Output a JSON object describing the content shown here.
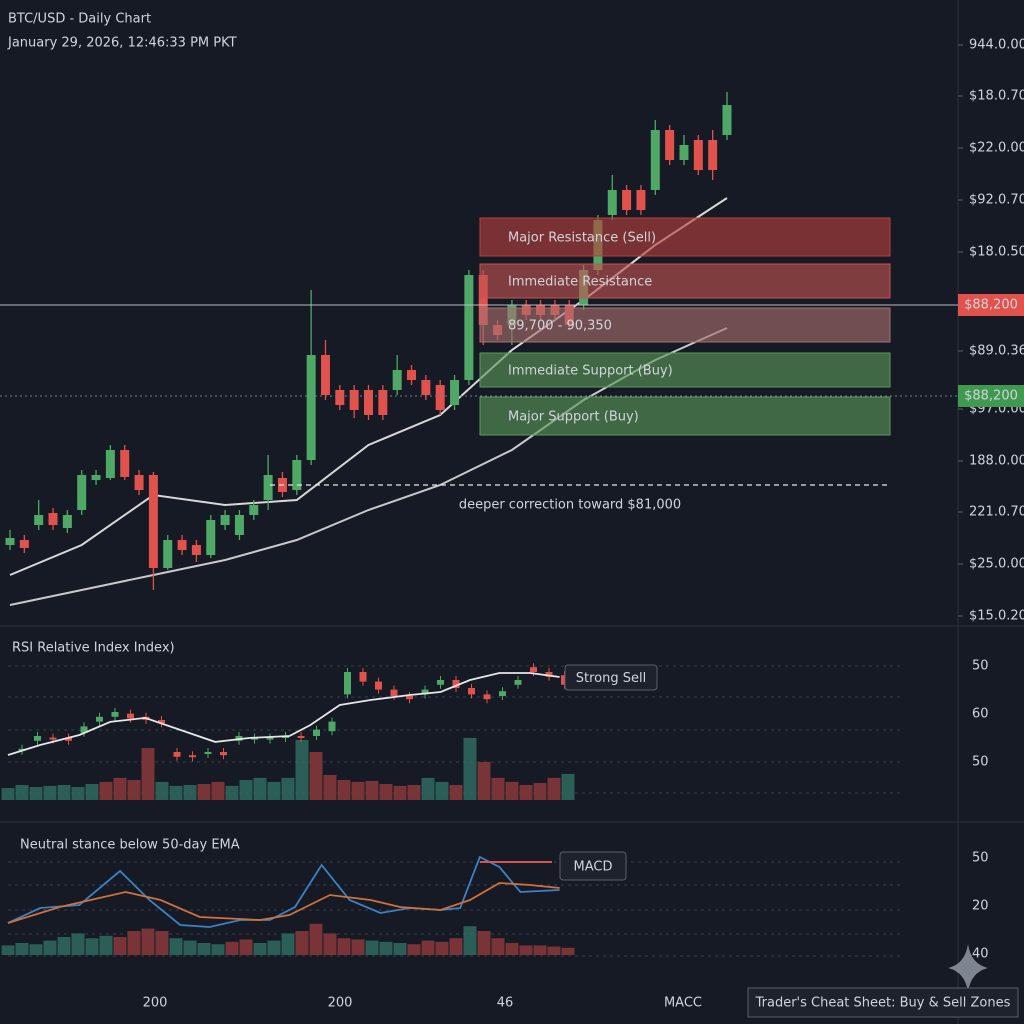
{
  "chart_data": [
    {
      "type": "candlestick",
      "title": "BTC/USD - Daily Chart",
      "subtitle": "January 29, 2026, 12:46:33 PM PKT",
      "up_color": "#4fa866",
      "down_color": "#e0524b",
      "ylim": [
        75400,
        100400
      ],
      "yticks": [
        {
          "value": 98600,
          "label": "944.0.00"
        },
        {
          "value": 96560,
          "label": "$18.0.70"
        },
        {
          "value": 94480,
          "label": "$22.0.00"
        },
        {
          "value": 92400,
          "label": "$92.0.70"
        },
        {
          "value": 90320,
          "label": "$18.0.50"
        },
        {
          "value": 86360,
          "label": "$89.0.36"
        },
        {
          "value": 84040,
          "label": "$97.0.00"
        },
        {
          "value": 81960,
          "label": "188.0.00"
        },
        {
          "value": 79920,
          "label": "221.0.70"
        },
        {
          "value": 77840,
          "label": "$25.0.00"
        },
        {
          "value": 75760,
          "label": "$15.0.20"
        }
      ],
      "open": [
        78600,
        78800,
        79400,
        79880,
        79280,
        80000,
        81200,
        81280,
        82400,
        81400,
        81400,
        77680,
        78800,
        78600,
        78200,
        79400,
        79000,
        79800,
        80400,
        81280,
        80800,
        82000,
        86200,
        84800,
        84800,
        84800,
        84800,
        84800,
        85600,
        85200,
        85000,
        84200,
        85200,
        89400,
        87400,
        87400,
        88200,
        88200,
        88200,
        88200,
        88200,
        89600,
        91800,
        92800,
        92800,
        92800,
        95200,
        94000,
        94800,
        94800,
        95000
      ],
      "high": [
        79200,
        79000,
        80400,
        80080,
        80000,
        81600,
        81600,
        82600,
        82600,
        81600,
        81520,
        79000,
        79000,
        78800,
        79800,
        80000,
        80000,
        80400,
        82200,
        81520,
        82200,
        88800,
        86800,
        85000,
        85000,
        85000,
        85000,
        86200,
        85800,
        85400,
        85200,
        85400,
        89600,
        89600,
        87600,
        88400,
        88400,
        88400,
        88400,
        88400,
        89800,
        91800,
        93400,
        93000,
        93000,
        95600,
        95400,
        95000,
        95000,
        95200,
        96720
      ],
      "low": [
        78400,
        78280,
        79200,
        79200,
        79080,
        79800,
        81000,
        81200,
        81200,
        80600,
        76800,
        77600,
        78200,
        77920,
        78080,
        79200,
        78800,
        79600,
        80000,
        80520,
        80600,
        81800,
        84400,
        84000,
        83680,
        83600,
        83600,
        84600,
        85000,
        84400,
        83800,
        84000,
        85000,
        86600,
        86800,
        86600,
        87600,
        87600,
        87600,
        87200,
        88000,
        89400,
        91600,
        91800,
        91800,
        92600,
        93800,
        93800,
        93400,
        93200,
        94800
      ],
      "close": [
        78880,
        78480,
        79800,
        79400,
        79800,
        81400,
        81400,
        82400,
        81320,
        80800,
        77680,
        78800,
        78400,
        78200,
        79600,
        79800,
        79800,
        80200,
        81400,
        80720,
        82000,
        86200,
        84600,
        84200,
        84000,
        83800,
        83800,
        85600,
        85200,
        84600,
        84000,
        85200,
        89400,
        87400,
        87000,
        88200,
        87800,
        87800,
        87800,
        87400,
        89600,
        91600,
        92800,
        92000,
        92000,
        95200,
        94000,
        94600,
        93600,
        93600,
        96200
      ],
      "moving_averages": [
        {
          "color": "#d8d8d8",
          "x": [
            0,
            5,
            10,
            15,
            20,
            25,
            30,
            35,
            40,
            45,
            50
          ],
          "values": [
            77400,
            78600,
            80600,
            80200,
            80400,
            82600,
            83800,
            86400,
            88400,
            90600,
            92480
          ]
        },
        {
          "color": "#c9c9c9",
          "x": [
            0,
            5,
            10,
            15,
            20,
            25,
            30,
            35,
            40,
            45,
            50
          ],
          "values": [
            76200,
            76800,
            77400,
            78000,
            78800,
            80000,
            81000,
            82400,
            84400,
            86000,
            87280
          ]
        }
      ],
      "price_line": {
        "value": 88200,
        "label": "$88,200",
        "color": "#e0524b"
      },
      "support_marker": {
        "label": "$88,200",
        "color": "#3f9a4f"
      },
      "zones": [
        {
          "label": "Major Resistance (Sell)",
          "color": "#b8403c"
        },
        {
          "label": "Immediate Resistance",
          "color": "#c25450"
        },
        {
          "label": "89,700 - 90,350",
          "color": "#a8706e"
        },
        {
          "label": "Immediate Support (Buy)",
          "color": "#5a9a58"
        },
        {
          "label": "Major Support (Buy)",
          "color": "#5a9a58"
        }
      ],
      "target": {
        "value": 81000,
        "label": "deeper correction toward $81,000"
      }
    },
    {
      "type": "rsi",
      "title": "RSI Relative Index Index)",
      "side_labels": [
        "50",
        "60",
        "50"
      ],
      "badge": "Strong Sell",
      "ylim": [
        0,
        100
      ],
      "xlim": [
        0,
        40
      ],
      "up_color": "#2f6b5f",
      "down_color": "#8a3a3a",
      "candle_up_color": "#4fa866",
      "candle_down_color": "#e0524b",
      "line_color": "#e6e6e6",
      "open": [
        31,
        37,
        39,
        39,
        42,
        49,
        52,
        54,
        52,
        50,
        30,
        28,
        29,
        30,
        37,
        38,
        38,
        39,
        40,
        40,
        43,
        66,
        80,
        74,
        69,
        65,
        66,
        72,
        75,
        70,
        66,
        65,
        72,
        83,
        80,
        78
      ],
      "close": [
        32,
        40,
        38,
        37,
        46,
        52,
        55,
        51,
        50,
        48,
        27,
        27,
        30,
        28,
        40,
        39,
        39,
        40,
        39,
        44,
        49,
        80,
        74,
        69,
        65,
        63,
        69,
        75,
        70,
        66,
        63,
        68,
        75,
        80,
        77,
        72
      ],
      "line_x": [
        0,
        2.3,
        5.1,
        7.3,
        9.8,
        12.3,
        14.8,
        17.3,
        20.1,
        21.6,
        23.7,
        25.9,
        28.7,
        30.9,
        33,
        35.1,
        37.3,
        39.4
      ],
      "line_values": [
        28.1,
        34.4,
        40.6,
        48.8,
        51.3,
        43.8,
        36.3,
        38.8,
        40,
        46.9,
        59.4,
        62.5,
        65.6,
        67.5,
        75,
        79.4,
        79.4,
        76.9
      ],
      "histogram": [
        7.5,
        9.4,
        8.1,
        8.8,
        9.4,
        8.1,
        10,
        11.3,
        13.8,
        12.5,
        32.5,
        11.3,
        8.8,
        9.4,
        10,
        11.3,
        8.8,
        12.5,
        13.8,
        11.3,
        13.8,
        37.5,
        30,
        15.6,
        12.5,
        11.3,
        11.9,
        10,
        8.8,
        9.4,
        13.8,
        11.3,
        9.4,
        38.8,
        23.8,
        13.8,
        11.3,
        9.4,
        10.6,
        13.8,
        16.3
      ],
      "up": [
        true,
        true,
        true,
        true,
        true,
        true,
        true,
        false,
        false,
        false,
        false,
        true,
        true,
        true,
        false,
        false,
        true,
        true,
        true,
        true,
        true,
        true,
        false,
        false,
        false,
        false,
        false,
        false,
        false,
        false,
        true,
        true,
        false,
        true,
        false,
        false,
        false,
        false,
        false,
        false,
        true
      ]
    },
    {
      "type": "macd",
      "title": "Neutral stance below 50-day EMA",
      "side_labels": [
        "50",
        "20",
        "40"
      ],
      "badge": "MACD",
      "ylim": [
        0,
        100
      ],
      "xlim": [
        0,
        40
      ],
      "up_color": "#2f6b5f",
      "down_color": "#8a3a3a",
      "macd_color": "#3b82c4",
      "signal_color": "#d0703a",
      "macd_x": [
        0,
        2.3,
        5.1,
        8,
        10.1,
        12.3,
        14.4,
        16.6,
        18.7,
        20.5,
        22.4,
        24.4,
        26.6,
        28.7,
        30.9,
        32.3,
        33.7,
        35.1,
        36.6,
        39.4
      ],
      "macd_values": [
        26.7,
        39.2,
        41.7,
        70,
        45.8,
        25,
        23.3,
        29.2,
        29.2,
        40,
        75,
        45.8,
        35,
        39.2,
        37.5,
        39.2,
        81.7,
        73.3,
        52.5,
        54.2
      ],
      "signal_x": [
        0,
        3.7,
        8.4,
        10.9,
        13.7,
        18,
        20.1,
        23,
        25.9,
        28,
        30.9,
        33,
        35.1,
        37.3,
        39.4
      ],
      "signal_values": [
        26.7,
        40,
        52.5,
        45.8,
        31.7,
        29.2,
        33.3,
        50,
        45.8,
        40,
        37.5,
        45.8,
        60,
        58.3,
        55.8
      ],
      "histogram": [
        8,
        10,
        9,
        12,
        15,
        18,
        14,
        16,
        15,
        20,
        22,
        20,
        14,
        12,
        10,
        9,
        11,
        13,
        10,
        12,
        18,
        20,
        26,
        18,
        14,
        13,
        12,
        11,
        10,
        9,
        12,
        11,
        14,
        24,
        20,
        14,
        10,
        8,
        8,
        7,
        6
      ],
      "up": [
        true,
        true,
        true,
        true,
        true,
        true,
        true,
        true,
        false,
        false,
        false,
        false,
        true,
        true,
        true,
        true,
        false,
        false,
        true,
        true,
        true,
        false,
        false,
        false,
        false,
        false,
        true,
        true,
        true,
        false,
        false,
        false,
        false,
        true,
        false,
        false,
        false,
        false,
        false,
        false,
        false
      ]
    }
  ],
  "x_labels": [
    "200",
    "200",
    "46",
    "MACC"
  ],
  "button": "Trader's Cheat Sheet: Buy & Sell Zones"
}
